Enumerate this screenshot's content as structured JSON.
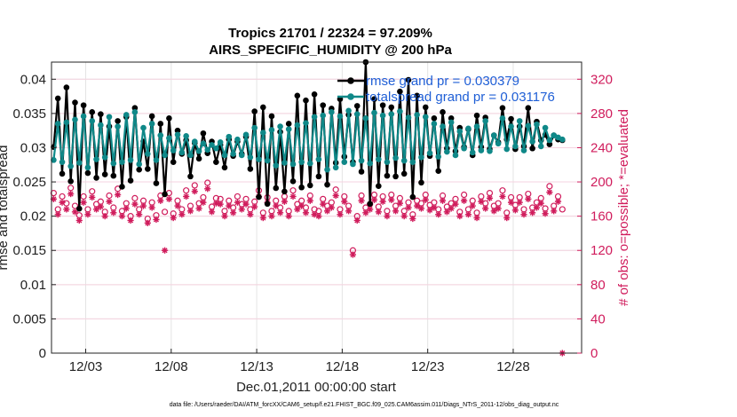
{
  "chart_data": {
    "type": "line",
    "title_line1": "Tropics 21701 / 22324 = 97.209%",
    "title_line2": "AIRS_SPECIFIC_HUMIDITY @ 200 hPa",
    "xlabel": "Dec.01,2011 00:00:00 start",
    "ylabel_left": "rmse and totalspread",
    "ylabel_right": "# of obs: o=possible; *=evaluated",
    "footer": "data file: /Users/raeder/DAI/ATM_forcXX/CAM6_setup/f.e21.FHIST_BGC.f09_025.CAM6assim.011/Diags_NTrS_2011-12/obs_diag_output.nc",
    "x_tick_labels": [
      "12/03",
      "12/08",
      "12/13",
      "12/18",
      "12/23",
      "12/28"
    ],
    "x_tick_days": [
      3,
      8,
      13,
      18,
      23,
      28
    ],
    "xlim": [
      1.0,
      32.0
    ],
    "ylim_left": [
      0,
      0.0425
    ],
    "y_ticks_left": [
      "0",
      "0.005",
      "0.01",
      "0.015",
      "0.02",
      "0.025",
      "0.03",
      "0.035",
      "0.04"
    ],
    "ylim_right": [
      0,
      340
    ],
    "y_ticks_right": [
      "0",
      "40",
      "80",
      "120",
      "160",
      "200",
      "240",
      "280",
      "320"
    ],
    "series": [
      {
        "name": "rmse",
        "legend": "rmse grand pr = 0.030379",
        "color": "#000000",
        "values": [
          0.0301,
          0.0372,
          0.0262,
          0.0388,
          0.0251,
          0.0366,
          0.0211,
          0.0362,
          0.0263,
          0.0352,
          0.0256,
          0.0349,
          0.0261,
          0.0331,
          0.0259,
          0.0339,
          0.0243,
          0.0345,
          0.0252,
          0.0358,
          0.0268,
          0.0309,
          0.0269,
          0.0346,
          0.0248,
          0.0335,
          0.0232,
          0.0343,
          0.0279,
          0.0325,
          0.0291,
          0.0311,
          0.0258,
          0.0307,
          0.0284,
          0.0321,
          0.0292,
          0.0309,
          0.0279,
          0.0304,
          0.0271,
          0.0312,
          0.0288,
          0.0309,
          0.0291,
          0.0316,
          0.0269,
          0.0353,
          0.0228,
          0.0359,
          0.0218,
          0.0346,
          0.0241,
          0.0323,
          0.0236,
          0.0335,
          0.0251,
          0.0376,
          0.0242,
          0.0369,
          0.0245,
          0.0378,
          0.0258,
          0.0362,
          0.0246,
          0.0357,
          0.0278,
          0.0371,
          0.0287,
          0.0348,
          0.0279,
          0.0361,
          0.0265,
          0.0425,
          0.0218,
          0.0371,
          0.0244,
          0.0362,
          0.0259,
          0.0359,
          0.0258,
          0.0382,
          0.0262,
          0.0399,
          0.0228,
          0.0376,
          0.0249,
          0.0359,
          0.0288,
          0.0343,
          0.0266,
          0.0352,
          0.0299,
          0.0343,
          0.0295,
          0.0329,
          0.0301,
          0.0327,
          0.0289,
          0.0347,
          0.0301,
          0.0344,
          0.0298,
          0.0318,
          0.0308,
          0.0358,
          0.0312,
          0.0342,
          0.0298,
          0.0331,
          0.0302,
          0.0358,
          0.0299,
          0.0338,
          0.0311,
          0.0319,
          0.0305,
          0.0318,
          0.0312,
          0.0311
        ]
      },
      {
        "name": "totalspread",
        "legend": "totalspread grand pr = 0.031176",
        "color": "#0f8888",
        "values": [
          0.0282,
          0.0335,
          0.0279,
          0.0337,
          0.0273,
          0.0341,
          0.0278,
          0.0346,
          0.0271,
          0.0339,
          0.0283,
          0.0333,
          0.0286,
          0.0345,
          0.0277,
          0.0331,
          0.0279,
          0.0348,
          0.0282,
          0.0352,
          0.0276,
          0.0329,
          0.0291,
          0.0335,
          0.0282,
          0.0318,
          0.0289,
          0.0314,
          0.0296,
          0.0319,
          0.0293,
          0.0317,
          0.0289,
          0.0309,
          0.0295,
          0.0306,
          0.0297,
          0.0304,
          0.0299,
          0.0308,
          0.0289,
          0.0316,
          0.0291,
          0.0312,
          0.0289,
          0.0319,
          0.0286,
          0.0329,
          0.0283,
          0.0322,
          0.0281,
          0.0326,
          0.0274,
          0.0331,
          0.0278,
          0.0327,
          0.0276,
          0.0333,
          0.0279,
          0.0336,
          0.0277,
          0.0345,
          0.0283,
          0.0347,
          0.0268,
          0.0352,
          0.0271,
          0.0346,
          0.0279,
          0.0354,
          0.0276,
          0.0349,
          0.0281,
          0.0343,
          0.0277,
          0.0351,
          0.0283,
          0.0347,
          0.0279,
          0.0349,
          0.0285,
          0.0353,
          0.0281,
          0.0344,
          0.0279,
          0.0348,
          0.0286,
          0.0345,
          0.0292,
          0.0335,
          0.0287,
          0.0331,
          0.0294,
          0.0337,
          0.0289,
          0.0324,
          0.0299,
          0.0328,
          0.0293,
          0.0331,
          0.0296,
          0.0339,
          0.0295,
          0.0318,
          0.0306,
          0.0343,
          0.0298,
          0.0331,
          0.0302,
          0.0339,
          0.0296,
          0.0332,
          0.0309,
          0.0334,
          0.0302,
          0.0329,
          0.0311,
          0.0318,
          0.0315,
          0.0312
        ]
      }
    ],
    "obs_possible": [
      187,
      168,
      183,
      175,
      193,
      172,
      161,
      183,
      168,
      189,
      174,
      177,
      165,
      184,
      170,
      192,
      166,
      175,
      160,
      181,
      168,
      178,
      157,
      176,
      161,
      184,
      165,
      187,
      163,
      178,
      168,
      190,
      172,
      196,
      175,
      182,
      199,
      171,
      181,
      180,
      166,
      178,
      170,
      183,
      174,
      180,
      168,
      177,
      190,
      164,
      182,
      166,
      178,
      170,
      183,
      166,
      190,
      174,
      178,
      170,
      184,
      168,
      166,
      180,
      172,
      176,
      191,
      168,
      183,
      172,
      120,
      160,
      184,
      170,
      174,
      185,
      171,
      183,
      166,
      185,
      172,
      181,
      166,
      176,
      162,
      178,
      175,
      185,
      173,
      176,
      168,
      184,
      171,
      175,
      180,
      165,
      185,
      168,
      178,
      164,
      183,
      175,
      187,
      172,
      175,
      190,
      164,
      182,
      173,
      182,
      168,
      186,
      170,
      176,
      181,
      169,
      195,
      172,
      183,
      168
    ],
    "obs_evaluated": [
      180,
      162,
      176,
      168,
      186,
      165,
      155,
      176,
      162,
      182,
      168,
      171,
      160,
      177,
      164,
      185,
      160,
      169,
      155,
      174,
      162,
      172,
      152,
      170,
      156,
      178,
      120,
      180,
      158,
      172,
      162,
      183,
      166,
      189,
      169,
      176,
      192,
      165,
      175,
      174,
      160,
      172,
      164,
      176,
      168,
      174,
      162,
      171,
      183,
      158,
      176,
      160,
      172,
      164,
      177,
      160,
      183,
      168,
      172,
      164,
      178,
      162,
      160,
      174,
      166,
      170,
      184,
      162,
      177,
      166,
      115,
      155,
      178,
      164,
      168,
      179,
      165,
      177,
      160,
      179,
      166,
      175,
      160,
      170,
      157,
      172,
      169,
      179,
      167,
      170,
      162,
      178,
      165,
      169,
      174,
      160,
      178,
      162,
      172,
      158,
      177,
      169,
      181,
      166,
      169,
      183,
      158,
      176,
      167,
      176,
      162,
      180,
      164,
      170,
      175,
      163,
      188,
      166,
      177,
      0
    ]
  }
}
